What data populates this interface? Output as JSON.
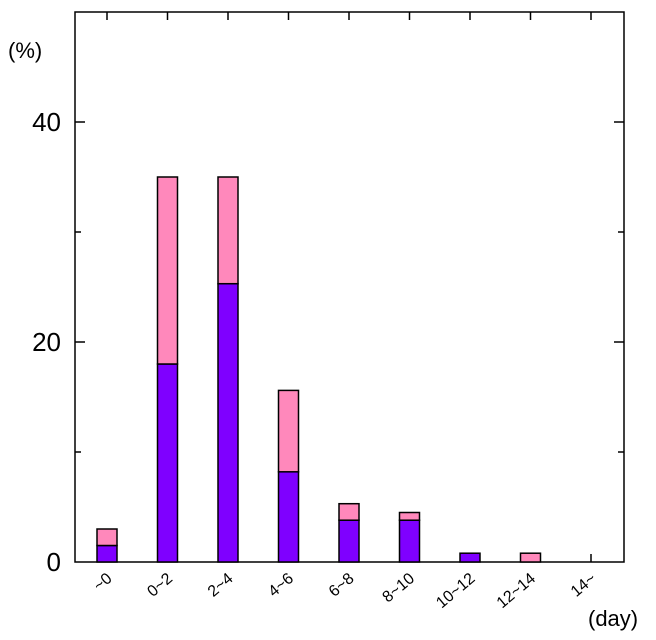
{
  "chart_data": {
    "type": "bar",
    "stacked": true,
    "categories": [
      "~0",
      "0~2",
      "2~4",
      "4~6",
      "6~8",
      "8~10",
      "10~12",
      "12~14",
      "14~"
    ],
    "series": [
      {
        "values": [
          1.5,
          18,
          25.3,
          8.2,
          3.8,
          3.8,
          0.8,
          0,
          0
        ],
        "color": "#7f00ff"
      },
      {
        "values": [
          1.5,
          17,
          9.7,
          7.4,
          1.5,
          0.7,
          0,
          0.8,
          0
        ],
        "color": "#ff88bb"
      }
    ],
    "y_unit_label": "(%)",
    "x_unit_label": "(day)",
    "yticks": [
      0,
      20,
      40
    ],
    "ylim": [
      0,
      50
    ],
    "grid": false,
    "legend": "none"
  }
}
